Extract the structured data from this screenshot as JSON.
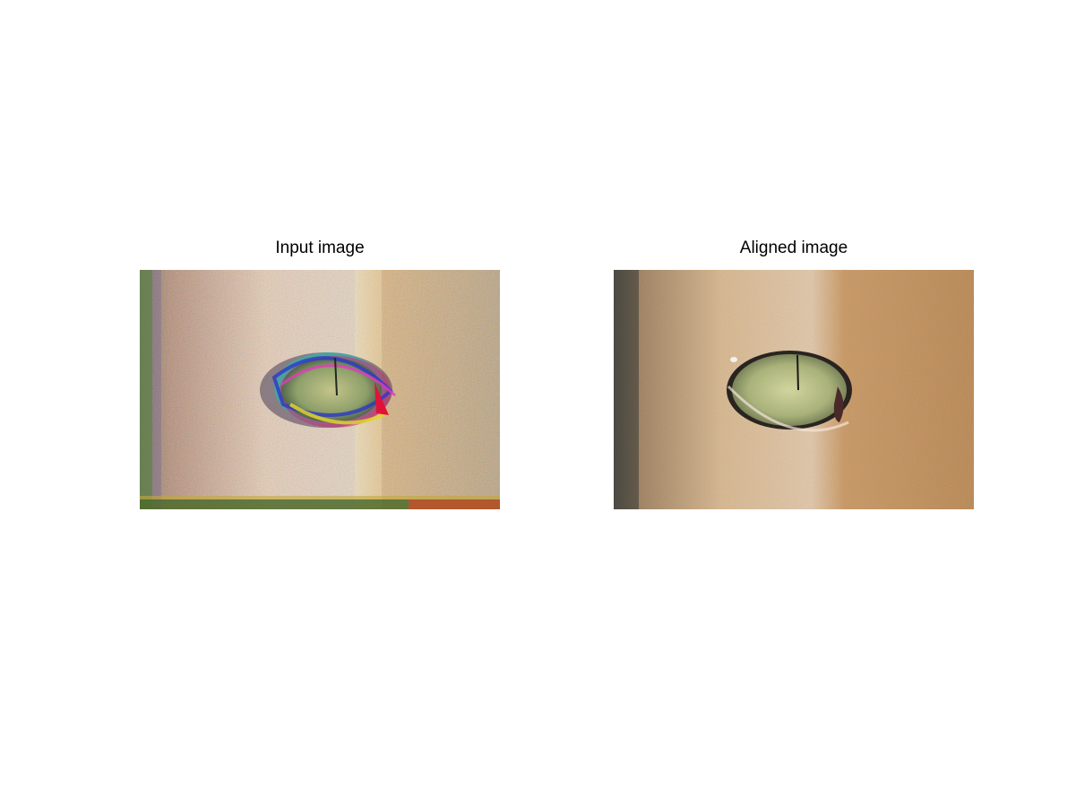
{
  "panels": [
    {
      "title": "Input image",
      "image": "cat-eye-misaligned-rgb-channels"
    },
    {
      "title": "Aligned image",
      "image": "cat-eye-aligned-color"
    }
  ]
}
